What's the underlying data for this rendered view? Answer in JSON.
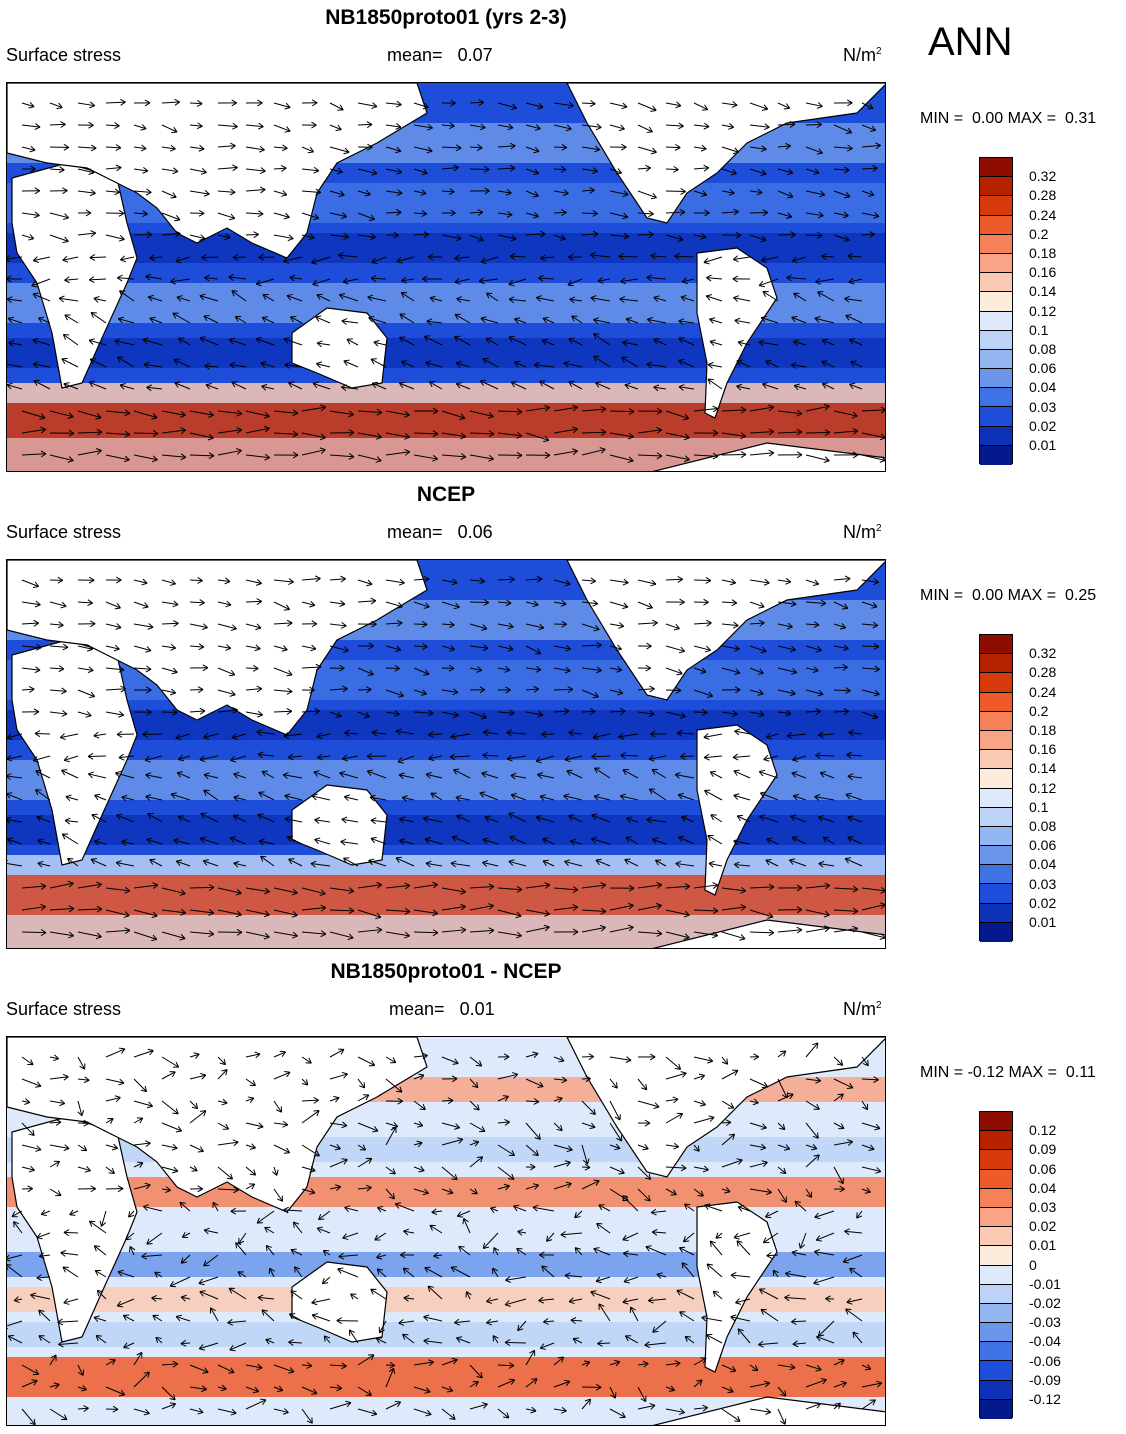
{
  "season": "ANN",
  "colors": {
    "ocean_default": "#1f4fd8",
    "land": "#ffffff",
    "coast": "#000000",
    "arrow": "#000000"
  },
  "panels": [
    {
      "title": "NB1850proto01 (yrs 2-3)",
      "variable": "Surface stress",
      "mean_label": "mean=",
      "mean_value": "0.07",
      "units": "N/m",
      "units_sup": "2",
      "min_label": "MIN =",
      "min_value": "0.00",
      "max_label": "MAX =",
      "max_value": "0.31",
      "colorbar_labels": [
        "0.32",
        "0.28",
        "0.24",
        "0.2",
        "0.18",
        "0.16",
        "0.14",
        "0.12",
        "0.1",
        "0.08",
        "0.06",
        "0.04",
        "0.03",
        "0.02",
        "0.01"
      ],
      "colorbar_colors": [
        "#8e0d00",
        "#b62100",
        "#d63a0a",
        "#ef5a2a",
        "#f68158",
        "#f9a486",
        "#fbcab3",
        "#fdebdc",
        "#deeafb",
        "#bcd3f7",
        "#94b6f0",
        "#6b96ea",
        "#3f73e5",
        "#1e4ed9",
        "#0d32b8",
        "#03198c"
      ]
    },
    {
      "title": "NCEP",
      "variable": "Surface stress",
      "mean_label": "mean=",
      "mean_value": "0.06",
      "units": "N/m",
      "units_sup": "2",
      "min_label": "MIN =",
      "min_value": "0.00",
      "max_label": "MAX =",
      "max_value": "0.25",
      "colorbar_labels": [
        "0.32",
        "0.28",
        "0.24",
        "0.2",
        "0.18",
        "0.16",
        "0.14",
        "0.12",
        "0.1",
        "0.08",
        "0.06",
        "0.04",
        "0.03",
        "0.02",
        "0.01"
      ],
      "colorbar_colors": [
        "#8e0d00",
        "#b62100",
        "#d63a0a",
        "#ef5a2a",
        "#f68158",
        "#f9a486",
        "#fbcab3",
        "#fdebdc",
        "#deeafb",
        "#bcd3f7",
        "#94b6f0",
        "#6b96ea",
        "#3f73e5",
        "#1e4ed9",
        "#0d32b8",
        "#03198c"
      ]
    },
    {
      "title": "NB1850proto01 - NCEP",
      "variable": "Surface stress",
      "mean_label": "mean=",
      "mean_value": "0.01",
      "units": "N/m",
      "units_sup": "2",
      "min_label": "MIN =",
      "min_value": "-0.12",
      "max_label": "MAX =",
      "max_value": "0.11",
      "colorbar_labels": [
        "0.12",
        "0.09",
        "0.06",
        "0.04",
        "0.03",
        "0.02",
        "0.01",
        "0",
        "-0.01",
        "-0.02",
        "-0.03",
        "-0.04",
        "-0.06",
        "-0.09",
        "-0.12"
      ],
      "colorbar_colors": [
        "#8e0d00",
        "#b62100",
        "#d63a0a",
        "#ef5a2a",
        "#f68158",
        "#f9a486",
        "#fbcab3",
        "#fdebdc",
        "#deeafb",
        "#bcd3f7",
        "#94b6f0",
        "#6b96ea",
        "#3f73e5",
        "#1e4ed9",
        "#0d32b8",
        "#03198c"
      ]
    }
  ]
}
